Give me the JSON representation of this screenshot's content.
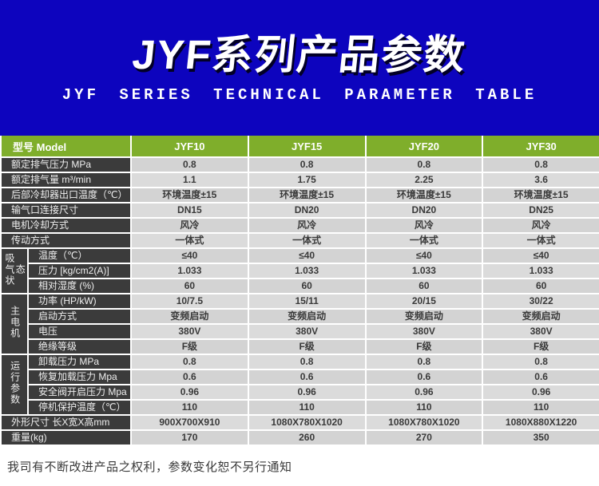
{
  "banner": {
    "title": "JYF系列产品参数",
    "subtitle": "JYF SERIES TECHNICAL PARAMETER TABLE"
  },
  "colors": {
    "banner_blue": "#0D04BE",
    "header_green": "#7FAE2B",
    "label_dark": "#3B3B3B",
    "data_cell_gray": "#D3D3D3",
    "grid_white": "#FFFFFF"
  },
  "table": {
    "header": {
      "label": "型号 Model",
      "models": [
        "JYF10",
        "JYF15",
        "JYF20",
        "JYF30"
      ]
    },
    "rows": [
      {
        "label": "额定排气压力 MPa",
        "values": [
          "0.8",
          "0.8",
          "0.8",
          "0.8"
        ]
      },
      {
        "label": "额定排气量 m³/min",
        "values": [
          "1.1",
          "1.75",
          "2.25",
          "3.6"
        ]
      },
      {
        "label": "后部冷却器出口温度（℃）",
        "values": [
          "环境温度±15",
          "环境温度±15",
          "环境温度±15",
          "环境温度±15"
        ]
      },
      {
        "label": "输气口连接尺寸",
        "values": [
          "DN15",
          "DN20",
          "DN20",
          "DN25"
        ]
      },
      {
        "label": "电机冷却方式",
        "values": [
          "风冷",
          "风冷",
          "风冷",
          "风冷"
        ]
      },
      {
        "label": "传动方式",
        "values": [
          "一体式",
          "一体式",
          "一体式",
          "一体式"
        ]
      },
      {
        "group": "吸气状态",
        "group_span": 3,
        "label": "温度（℃）",
        "values": [
          "≤40",
          "≤40",
          "≤40",
          "≤40"
        ]
      },
      {
        "label": "压力 [kg/cm2(A)]",
        "values": [
          "1.033",
          "1.033",
          "1.033",
          "1.033"
        ]
      },
      {
        "label": "相对湿度 (%)",
        "values": [
          "60",
          "60",
          "60",
          "60"
        ]
      },
      {
        "group": "主电机",
        "group_span": 4,
        "label": "功率 (HP/kW)",
        "values": [
          "10/7.5",
          "15/11",
          "20/15",
          "30/22"
        ]
      },
      {
        "label": "启动方式",
        "values": [
          "变频启动",
          "变频启动",
          "变频启动",
          "变频启动"
        ]
      },
      {
        "label": "电压",
        "values": [
          "380V",
          "380V",
          "380V",
          "380V"
        ]
      },
      {
        "label": "绝缘等级",
        "values": [
          "F级",
          "F级",
          "F级",
          "F级"
        ]
      },
      {
        "group": "运行参数",
        "group_span": 4,
        "label": "卸载压力 MPa",
        "values": [
          "0.8",
          "0.8",
          "0.8",
          "0.8"
        ]
      },
      {
        "label": "恢复加载压力 Mpa",
        "values": [
          "0.6",
          "0.6",
          "0.6",
          "0.6"
        ]
      },
      {
        "label": "安全阀开启压力 Mpa",
        "values": [
          "0.96",
          "0.96",
          "0.96",
          "0.96"
        ]
      },
      {
        "label": "停机保护温度（℃）",
        "values": [
          "110",
          "110",
          "110",
          "110"
        ]
      },
      {
        "label": "外形尺寸 长X宽X高mm",
        "values": [
          "900X700X910",
          "1080X780X1020",
          "1080X780X1020",
          "1080X880X1220"
        ]
      },
      {
        "label": "重量(kg)",
        "values": [
          "170",
          "260",
          "270",
          "350"
        ]
      }
    ]
  },
  "footer": {
    "note": "我司有不断改进产品之权利，参数变化恕不另行通知"
  }
}
